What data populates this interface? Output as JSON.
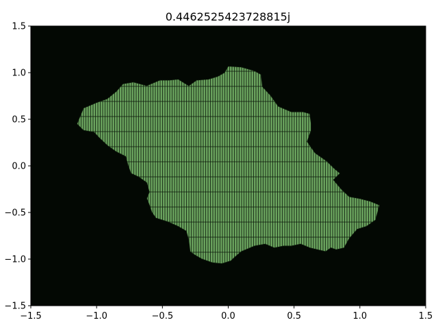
{
  "chart_data": {
    "type": "filled-region",
    "title": "0.4462525423728815j",
    "xlabel": "",
    "ylabel": "",
    "xlim": [
      -1.5,
      1.5
    ],
    "ylim": [
      -1.5,
      1.5
    ],
    "grid": false,
    "legend": "none",
    "x_ticks": [
      -1.5,
      -1.0,
      -0.5,
      0.0,
      0.5,
      1.0,
      1.5
    ],
    "y_ticks": [
      -1.5,
      -1.0,
      -0.5,
      0.0,
      0.5,
      1.0,
      1.5
    ],
    "x_tick_labels": [
      "−1.5",
      "−1.0",
      "−0.5",
      "0.0",
      "0.5",
      "1.0",
      "1.5"
    ],
    "y_tick_labels": [
      "−1.5",
      "−1.0",
      "−0.5",
      "0.0",
      "0.5",
      "1.0",
      "1.5"
    ],
    "colors": {
      "background": "#030803",
      "region_fill": "#6aa35e",
      "region_lines": "#0b160a",
      "axis": "#000000"
    },
    "region_boundary": [
      [
        -1.15,
        0.45
      ],
      [
        -1.1,
        0.62
      ],
      [
        -1.0,
        0.68
      ],
      [
        -0.92,
        0.72
      ],
      [
        -0.85,
        0.8
      ],
      [
        -0.8,
        0.88
      ],
      [
        -0.72,
        0.9
      ],
      [
        -0.62,
        0.86
      ],
      [
        -0.52,
        0.92
      ],
      [
        -0.45,
        0.92
      ],
      [
        -0.38,
        0.93
      ],
      [
        -0.3,
        0.86
      ],
      [
        -0.24,
        0.92
      ],
      [
        -0.15,
        0.93
      ],
      [
        -0.08,
        0.96
      ],
      [
        -0.03,
        1.0
      ],
      [
        0.0,
        1.07
      ],
      [
        0.1,
        1.06
      ],
      [
        0.2,
        1.02
      ],
      [
        0.25,
        0.98
      ],
      [
        0.26,
        0.85
      ],
      [
        0.32,
        0.76
      ],
      [
        0.38,
        0.64
      ],
      [
        0.48,
        0.58
      ],
      [
        0.57,
        0.58
      ],
      [
        0.62,
        0.56
      ],
      [
        0.63,
        0.45
      ],
      [
        0.63,
        0.38
      ],
      [
        0.6,
        0.26
      ],
      [
        0.66,
        0.14
      ],
      [
        0.75,
        0.05
      ],
      [
        0.8,
        -0.02
      ],
      [
        0.85,
        -0.08
      ],
      [
        0.8,
        -0.15
      ],
      [
        0.86,
        -0.25
      ],
      [
        0.92,
        -0.33
      ],
      [
        1.0,
        -0.35
      ],
      [
        1.08,
        -0.38
      ],
      [
        1.15,
        -0.42
      ],
      [
        1.12,
        -0.58
      ],
      [
        1.05,
        -0.65
      ],
      [
        0.98,
        -0.68
      ],
      [
        0.92,
        -0.78
      ],
      [
        0.88,
        -0.88
      ],
      [
        0.82,
        -0.9
      ],
      [
        0.78,
        -0.88
      ],
      [
        0.74,
        -0.92
      ],
      [
        0.62,
        -0.88
      ],
      [
        0.55,
        -0.84
      ],
      [
        0.48,
        -0.86
      ],
      [
        0.42,
        -0.86
      ],
      [
        0.35,
        -0.88
      ],
      [
        0.28,
        -0.84
      ],
      [
        0.2,
        -0.86
      ],
      [
        0.1,
        -0.92
      ],
      [
        0.05,
        -0.98
      ],
      [
        0.02,
        -1.02
      ],
      [
        -0.05,
        -1.05
      ],
      [
        -0.12,
        -1.04
      ],
      [
        -0.2,
        -1.0
      ],
      [
        -0.25,
        -0.96
      ],
      [
        -0.29,
        -0.92
      ],
      [
        -0.3,
        -0.8
      ],
      [
        -0.32,
        -0.7
      ],
      [
        -0.38,
        -0.65
      ],
      [
        -0.46,
        -0.6
      ],
      [
        -0.55,
        -0.56
      ],
      [
        -0.58,
        -0.5
      ],
      [
        -0.6,
        -0.42
      ],
      [
        -0.62,
        -0.35
      ],
      [
        -0.6,
        -0.28
      ],
      [
        -0.62,
        -0.18
      ],
      [
        -0.68,
        -0.12
      ],
      [
        -0.74,
        -0.08
      ],
      [
        -0.76,
        0.0
      ],
      [
        -0.78,
        0.1
      ],
      [
        -0.85,
        0.15
      ],
      [
        -0.92,
        0.22
      ],
      [
        -0.98,
        0.3
      ],
      [
        -1.02,
        0.36
      ],
      [
        -1.1,
        0.38
      ],
      [
        -1.15,
        0.45
      ]
    ]
  }
}
